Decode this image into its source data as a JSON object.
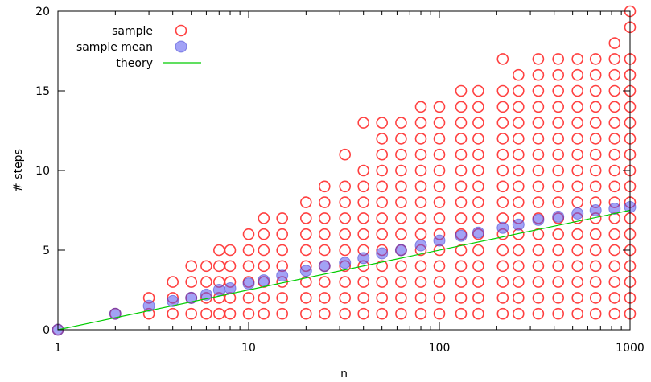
{
  "chart_data": {
    "type": "scatter",
    "xscale": "log",
    "xlim": [
      1,
      1000
    ],
    "ylim": [
      0,
      20
    ],
    "xlabel": "n",
    "ylabel": "# steps",
    "xticks": [
      1,
      10,
      100,
      1000
    ],
    "xtick_labels": [
      "1",
      "10",
      "100",
      "1000"
    ],
    "yticks": [
      0,
      5,
      10,
      15,
      20
    ],
    "ytick_labels": [
      "0",
      "5",
      "10",
      "15",
      "20"
    ],
    "grid": false,
    "legend": {
      "placement": "top-left",
      "entries": [
        "sample",
        "sample mean",
        "theory"
      ]
    },
    "series": [
      {
        "name": "sample",
        "marker": "open-circle",
        "color": "#ff0000",
        "points": [
          [
            1,
            0
          ],
          [
            2,
            1
          ],
          [
            3,
            1
          ],
          [
            3,
            2
          ],
          [
            4,
            1
          ],
          [
            4,
            2
          ],
          [
            4,
            3
          ],
          [
            5,
            1
          ],
          [
            5,
            2
          ],
          [
            5,
            3
          ],
          [
            5,
            4
          ],
          [
            6,
            1
          ],
          [
            6,
            2
          ],
          [
            6,
            3
          ],
          [
            6,
            4
          ],
          [
            7,
            1
          ],
          [
            7,
            2
          ],
          [
            7,
            3
          ],
          [
            7,
            4
          ],
          [
            7,
            5
          ],
          [
            8,
            1
          ],
          [
            8,
            2
          ],
          [
            8,
            3
          ],
          [
            8,
            4
          ],
          [
            8,
            5
          ],
          [
            10,
            1
          ],
          [
            10,
            2
          ],
          [
            10,
            3
          ],
          [
            10,
            4
          ],
          [
            10,
            5
          ],
          [
            10,
            6
          ],
          [
            12,
            1
          ],
          [
            12,
            2
          ],
          [
            12,
            3
          ],
          [
            12,
            4
          ],
          [
            12,
            5
          ],
          [
            12,
            6
          ],
          [
            12,
            7
          ],
          [
            15,
            1
          ],
          [
            15,
            2
          ],
          [
            15,
            3
          ],
          [
            15,
            4
          ],
          [
            15,
            5
          ],
          [
            15,
            6
          ],
          [
            15,
            7
          ],
          [
            20,
            1
          ],
          [
            20,
            2
          ],
          [
            20,
            3
          ],
          [
            20,
            4
          ],
          [
            20,
            5
          ],
          [
            20,
            6
          ],
          [
            20,
            7
          ],
          [
            20,
            8
          ],
          [
            25,
            1
          ],
          [
            25,
            2
          ],
          [
            25,
            3
          ],
          [
            25,
            4
          ],
          [
            25,
            5
          ],
          [
            25,
            6
          ],
          [
            25,
            7
          ],
          [
            25,
            8
          ],
          [
            25,
            9
          ],
          [
            32,
            1
          ],
          [
            32,
            2
          ],
          [
            32,
            3
          ],
          [
            32,
            4
          ],
          [
            32,
            5
          ],
          [
            32,
            6
          ],
          [
            32,
            7
          ],
          [
            32,
            8
          ],
          [
            32,
            9
          ],
          [
            32,
            11
          ],
          [
            40,
            1
          ],
          [
            40,
            2
          ],
          [
            40,
            3
          ],
          [
            40,
            4
          ],
          [
            40,
            5
          ],
          [
            40,
            6
          ],
          [
            40,
            7
          ],
          [
            40,
            8
          ],
          [
            40,
            9
          ],
          [
            40,
            10
          ],
          [
            40,
            13
          ],
          [
            50,
            1
          ],
          [
            50,
            2
          ],
          [
            50,
            3
          ],
          [
            50,
            4
          ],
          [
            50,
            5
          ],
          [
            50,
            6
          ],
          [
            50,
            7
          ],
          [
            50,
            8
          ],
          [
            50,
            9
          ],
          [
            50,
            10
          ],
          [
            50,
            11
          ],
          [
            50,
            12
          ],
          [
            50,
            13
          ],
          [
            63,
            1
          ],
          [
            63,
            2
          ],
          [
            63,
            3
          ],
          [
            63,
            4
          ],
          [
            63,
            5
          ],
          [
            63,
            6
          ],
          [
            63,
            7
          ],
          [
            63,
            8
          ],
          [
            63,
            9
          ],
          [
            63,
            10
          ],
          [
            63,
            11
          ],
          [
            63,
            12
          ],
          [
            63,
            13
          ],
          [
            80,
            1
          ],
          [
            80,
            2
          ],
          [
            80,
            3
          ],
          [
            80,
            4
          ],
          [
            80,
            5
          ],
          [
            80,
            6
          ],
          [
            80,
            7
          ],
          [
            80,
            8
          ],
          [
            80,
            9
          ],
          [
            80,
            10
          ],
          [
            80,
            11
          ],
          [
            80,
            12
          ],
          [
            80,
            13
          ],
          [
            80,
            14
          ],
          [
            100,
            1
          ],
          [
            100,
            2
          ],
          [
            100,
            3
          ],
          [
            100,
            4
          ],
          [
            100,
            5
          ],
          [
            100,
            6
          ],
          [
            100,
            7
          ],
          [
            100,
            8
          ],
          [
            100,
            9
          ],
          [
            100,
            10
          ],
          [
            100,
            11
          ],
          [
            100,
            12
          ],
          [
            100,
            13
          ],
          [
            100,
            14
          ],
          [
            130,
            1
          ],
          [
            130,
            2
          ],
          [
            130,
            3
          ],
          [
            130,
            4
          ],
          [
            130,
            5
          ],
          [
            130,
            6
          ],
          [
            130,
            7
          ],
          [
            130,
            8
          ],
          [
            130,
            9
          ],
          [
            130,
            10
          ],
          [
            130,
            11
          ],
          [
            130,
            12
          ],
          [
            130,
            13
          ],
          [
            130,
            14
          ],
          [
            130,
            15
          ],
          [
            160,
            1
          ],
          [
            160,
            2
          ],
          [
            160,
            3
          ],
          [
            160,
            4
          ],
          [
            160,
            5
          ],
          [
            160,
            6
          ],
          [
            160,
            7
          ],
          [
            160,
            8
          ],
          [
            160,
            9
          ],
          [
            160,
            10
          ],
          [
            160,
            11
          ],
          [
            160,
            12
          ],
          [
            160,
            13
          ],
          [
            160,
            14
          ],
          [
            160,
            15
          ],
          [
            215,
            1
          ],
          [
            215,
            2
          ],
          [
            215,
            3
          ],
          [
            215,
            4
          ],
          [
            215,
            5
          ],
          [
            215,
            6
          ],
          [
            215,
            7
          ],
          [
            215,
            8
          ],
          [
            215,
            9
          ],
          [
            215,
            10
          ],
          [
            215,
            11
          ],
          [
            215,
            12
          ],
          [
            215,
            13
          ],
          [
            215,
            14
          ],
          [
            215,
            15
          ],
          [
            215,
            17
          ],
          [
            260,
            1
          ],
          [
            260,
            2
          ],
          [
            260,
            3
          ],
          [
            260,
            4
          ],
          [
            260,
            5
          ],
          [
            260,
            6
          ],
          [
            260,
            7
          ],
          [
            260,
            8
          ],
          [
            260,
            9
          ],
          [
            260,
            10
          ],
          [
            260,
            11
          ],
          [
            260,
            12
          ],
          [
            260,
            13
          ],
          [
            260,
            14
          ],
          [
            260,
            15
          ],
          [
            260,
            16
          ],
          [
            330,
            1
          ],
          [
            330,
            2
          ],
          [
            330,
            3
          ],
          [
            330,
            4
          ],
          [
            330,
            5
          ],
          [
            330,
            6
          ],
          [
            330,
            7
          ],
          [
            330,
            8
          ],
          [
            330,
            9
          ],
          [
            330,
            10
          ],
          [
            330,
            11
          ],
          [
            330,
            12
          ],
          [
            330,
            13
          ],
          [
            330,
            14
          ],
          [
            330,
            15
          ],
          [
            330,
            16
          ],
          [
            330,
            17
          ],
          [
            420,
            1
          ],
          [
            420,
            2
          ],
          [
            420,
            3
          ],
          [
            420,
            4
          ],
          [
            420,
            5
          ],
          [
            420,
            6
          ],
          [
            420,
            7
          ],
          [
            420,
            8
          ],
          [
            420,
            9
          ],
          [
            420,
            10
          ],
          [
            420,
            11
          ],
          [
            420,
            12
          ],
          [
            420,
            13
          ],
          [
            420,
            14
          ],
          [
            420,
            15
          ],
          [
            420,
            16
          ],
          [
            420,
            17
          ],
          [
            530,
            1
          ],
          [
            530,
            2
          ],
          [
            530,
            3
          ],
          [
            530,
            4
          ],
          [
            530,
            5
          ],
          [
            530,
            6
          ],
          [
            530,
            7
          ],
          [
            530,
            8
          ],
          [
            530,
            9
          ],
          [
            530,
            10
          ],
          [
            530,
            11
          ],
          [
            530,
            12
          ],
          [
            530,
            13
          ],
          [
            530,
            14
          ],
          [
            530,
            15
          ],
          [
            530,
            16
          ],
          [
            530,
            17
          ],
          [
            660,
            1
          ],
          [
            660,
            2
          ],
          [
            660,
            3
          ],
          [
            660,
            4
          ],
          [
            660,
            5
          ],
          [
            660,
            6
          ],
          [
            660,
            7
          ],
          [
            660,
            8
          ],
          [
            660,
            9
          ],
          [
            660,
            10
          ],
          [
            660,
            11
          ],
          [
            660,
            12
          ],
          [
            660,
            13
          ],
          [
            660,
            14
          ],
          [
            660,
            15
          ],
          [
            660,
            16
          ],
          [
            660,
            17
          ],
          [
            830,
            1
          ],
          [
            830,
            2
          ],
          [
            830,
            3
          ],
          [
            830,
            4
          ],
          [
            830,
            5
          ],
          [
            830,
            6
          ],
          [
            830,
            7
          ],
          [
            830,
            8
          ],
          [
            830,
            9
          ],
          [
            830,
            10
          ],
          [
            830,
            11
          ],
          [
            830,
            12
          ],
          [
            830,
            13
          ],
          [
            830,
            14
          ],
          [
            830,
            15
          ],
          [
            830,
            16
          ],
          [
            830,
            17
          ],
          [
            830,
            18
          ],
          [
            1000,
            1
          ],
          [
            1000,
            2
          ],
          [
            1000,
            3
          ],
          [
            1000,
            4
          ],
          [
            1000,
            5
          ],
          [
            1000,
            6
          ],
          [
            1000,
            7
          ],
          [
            1000,
            8
          ],
          [
            1000,
            9
          ],
          [
            1000,
            10
          ],
          [
            1000,
            11
          ],
          [
            1000,
            12
          ],
          [
            1000,
            13
          ],
          [
            1000,
            14
          ],
          [
            1000,
            15
          ],
          [
            1000,
            16
          ],
          [
            1000,
            17
          ],
          [
            1000,
            19
          ],
          [
            1000,
            20
          ]
        ]
      },
      {
        "name": "sample mean",
        "marker": "filled-circle",
        "color": "#5555ee",
        "points": [
          [
            1,
            0
          ],
          [
            2,
            1
          ],
          [
            3,
            1.5
          ],
          [
            4,
            1.8
          ],
          [
            5,
            2.0
          ],
          [
            6,
            2.2
          ],
          [
            7,
            2.5
          ],
          [
            8,
            2.6
          ],
          [
            10,
            2.9
          ],
          [
            12,
            3.1
          ],
          [
            15,
            3.4
          ],
          [
            20,
            3.7
          ],
          [
            25,
            4.0
          ],
          [
            32,
            4.2
          ],
          [
            40,
            4.5
          ],
          [
            50,
            4.8
          ],
          [
            63,
            5.0
          ],
          [
            80,
            5.3
          ],
          [
            100,
            5.6
          ],
          [
            130,
            5.9
          ],
          [
            160,
            6.1
          ],
          [
            215,
            6.4
          ],
          [
            260,
            6.6
          ],
          [
            330,
            6.9
          ],
          [
            420,
            7.1
          ],
          [
            530,
            7.3
          ],
          [
            660,
            7.5
          ],
          [
            830,
            7.6
          ],
          [
            1000,
            7.7
          ]
        ]
      },
      {
        "name": "theory",
        "marker": "line",
        "color": "#00cc00",
        "points": [
          [
            1,
            0
          ],
          [
            1000,
            7.5
          ]
        ]
      }
    ]
  }
}
